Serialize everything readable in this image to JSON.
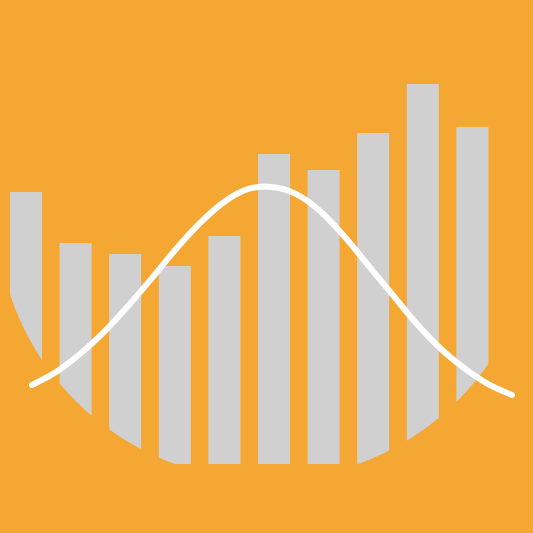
{
  "colors": {
    "background": "#F5A733",
    "bars": "#D0D0D0",
    "curve": "#FFFFFF"
  },
  "chart_data": {
    "type": "bar",
    "values": [
      272,
      221,
      210,
      198,
      228,
      310,
      294,
      331,
      380,
      337
    ],
    "ylim": [
      0,
      464
    ],
    "grid": false,
    "overlay": {
      "type": "line",
      "shape": "bell-curve",
      "x": [
        0,
        0.5,
        1,
        1.5,
        2,
        2.5,
        3,
        3.5,
        4,
        4.5,
        5,
        5.5,
        6,
        6.5,
        7,
        7.5,
        8,
        8.5,
        9,
        9.5,
        10
      ],
      "values": [
        79,
        92,
        110,
        132,
        158,
        186,
        215,
        241,
        262,
        275,
        277,
        270,
        253,
        228,
        199,
        170,
        141,
        116,
        96,
        80,
        69
      ]
    }
  }
}
